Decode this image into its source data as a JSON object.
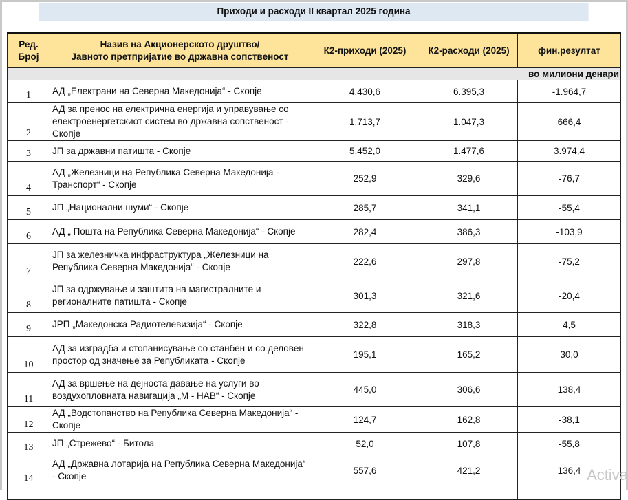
{
  "title": "Приходи и расходи II квартал 2025 година",
  "header": {
    "no": "Ред. Број",
    "name_line1": "Назив на Акционерското друштво/",
    "name_line2": "Јавното претпријатие во државна сопственост",
    "income": "К2-приходи (2025)",
    "expenses": "К2-расходи (2025)",
    "result": "фин.резултат"
  },
  "units": "во милиони денари",
  "rows": [
    {
      "no": "1",
      "name": "АД „Електрани на Северна Македонија“ - Скопје",
      "income": "4.430,6",
      "expenses": "6.395,3",
      "result": "-1.964,7"
    },
    {
      "no": "2",
      "name": "АД за пренос на електрична енергија и управување со електроенергетскиот систем во државна сопственост - Скопје",
      "income": "1.713,7",
      "expenses": "1.047,3",
      "result": "666,4"
    },
    {
      "no": "3",
      "name": "ЈП за државни патишта - Скопје",
      "income": "5.452,0",
      "expenses": "1.477,6",
      "result": "3.974,4"
    },
    {
      "no": "4",
      "name": "АД „Железници на Република Северна Македонија - Транспорт“ - Скопје",
      "income": "252,9",
      "expenses": "329,6",
      "result": "-76,7"
    },
    {
      "no": "5",
      "name": "ЈП „Национални шуми“ - Скопје",
      "income": "285,7",
      "expenses": "341,1",
      "result": "-55,4"
    },
    {
      "no": "6",
      "name": "АД „ Пошта на Република Северна Македонија“ - Скопје",
      "income": "282,4",
      "expenses": "386,3",
      "result": "-103,9"
    },
    {
      "no": "7",
      "name": "ЈП за железничка инфраструктура „Железници на Република Северна Македонија“ - Скопје",
      "income": "222,6",
      "expenses": "297,8",
      "result": "-75,2"
    },
    {
      "no": "8",
      "name": "ЈП за одржување и заштита на магистралните и регионалните патишта - Скопје",
      "income": "301,3",
      "expenses": "321,6",
      "result": "-20,4"
    },
    {
      "no": "9",
      "name": "ЈРП „Македонска Радиотелевизија“ - Скопје",
      "income": "322,8",
      "expenses": "318,3",
      "result": "4,5"
    },
    {
      "no": "10",
      "name": "АД за изградба и стопанисување со станбен и со деловен простор од значење за Републиката - Скопје",
      "income": "195,1",
      "expenses": "165,2",
      "result": "30,0"
    },
    {
      "no": "11",
      "name": "АД за вршење на дејноста давање на услуги во воздухопловната навигација „М - НАВ“ - Скопје",
      "income": "445,0",
      "expenses": "306,6",
      "result": "138,4"
    },
    {
      "no": "12",
      "name": "АД „Водстопанство на Република Северна Македонија“ - Скопје",
      "income": "124,7",
      "expenses": "162,8",
      "result": "-38,1"
    },
    {
      "no": "13",
      "name": "ЈП „Стрежево“ - Битола",
      "income": "52,0",
      "expenses": "107,8",
      "result": "-55,8"
    },
    {
      "no": "14",
      "name": "АД „Државна лотарија на Република Северна Македонија“ - Скопје",
      "income": "557,6",
      "expenses": "421,2",
      "result": "136,4"
    }
  ],
  "watermark": "Activa"
}
